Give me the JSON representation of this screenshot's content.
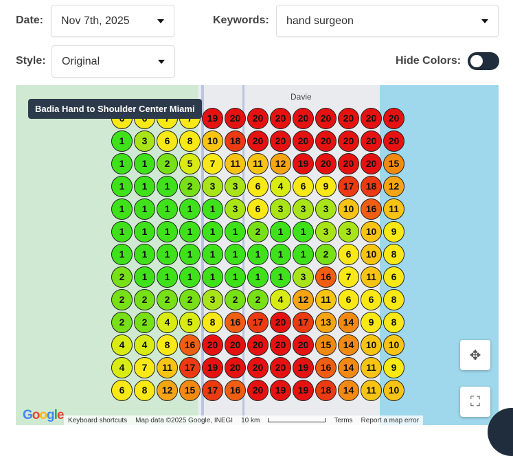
{
  "filters": {
    "date_label": "Date:",
    "date_value": "Nov 7th, 2025",
    "keywords_label": "Keywords:",
    "keywords_value": "hand surgeon",
    "style_label": "Style:",
    "style_value": "Original",
    "hide_colors_label": "Hide Colors:",
    "hide_colors_on": false
  },
  "map": {
    "tooltip": "Badia Hand to Shoulder Center Miami",
    "place_label": "Davie",
    "attribution": {
      "shortcuts": "Keyboard shortcuts",
      "data": "Map data ©2025 Google, INEGI",
      "scale": "10 km",
      "terms": "Terms",
      "report": "Report a map error"
    },
    "logo": "Google",
    "grid": [
      [
        6,
        6,
        7,
        7,
        19,
        20,
        20,
        20,
        20,
        20,
        20,
        20,
        20
      ],
      [
        1,
        3,
        6,
        8,
        10,
        18,
        20,
        20,
        20,
        20,
        20,
        20,
        20
      ],
      [
        1,
        1,
        2,
        5,
        7,
        11,
        11,
        12,
        19,
        20,
        20,
        20,
        15
      ],
      [
        1,
        1,
        1,
        2,
        3,
        3,
        6,
        4,
        6,
        9,
        17,
        18,
        12
      ],
      [
        1,
        1,
        1,
        1,
        1,
        3,
        6,
        3,
        3,
        3,
        10,
        16,
        11
      ],
      [
        1,
        1,
        1,
        1,
        1,
        1,
        2,
        1,
        1,
        3,
        3,
        10,
        9
      ],
      [
        1,
        1,
        1,
        1,
        1,
        1,
        1,
        1,
        1,
        2,
        6,
        10,
        8
      ],
      [
        2,
        1,
        1,
        1,
        1,
        1,
        1,
        1,
        3,
        16,
        7,
        11,
        6
      ],
      [
        2,
        2,
        2,
        2,
        3,
        2,
        2,
        4,
        12,
        11,
        6,
        6,
        8
      ],
      [
        2,
        2,
        4,
        5,
        8,
        16,
        17,
        20,
        17,
        13,
        14,
        9,
        8
      ],
      [
        4,
        4,
        8,
        16,
        20,
        20,
        20,
        20,
        20,
        15,
        14,
        10,
        10
      ],
      [
        4,
        7,
        11,
        17,
        19,
        20,
        20,
        20,
        19,
        16,
        14,
        11,
        9
      ],
      [
        6,
        8,
        12,
        15,
        17,
        16,
        20,
        19,
        19,
        18,
        14,
        11,
        10
      ]
    ]
  }
}
